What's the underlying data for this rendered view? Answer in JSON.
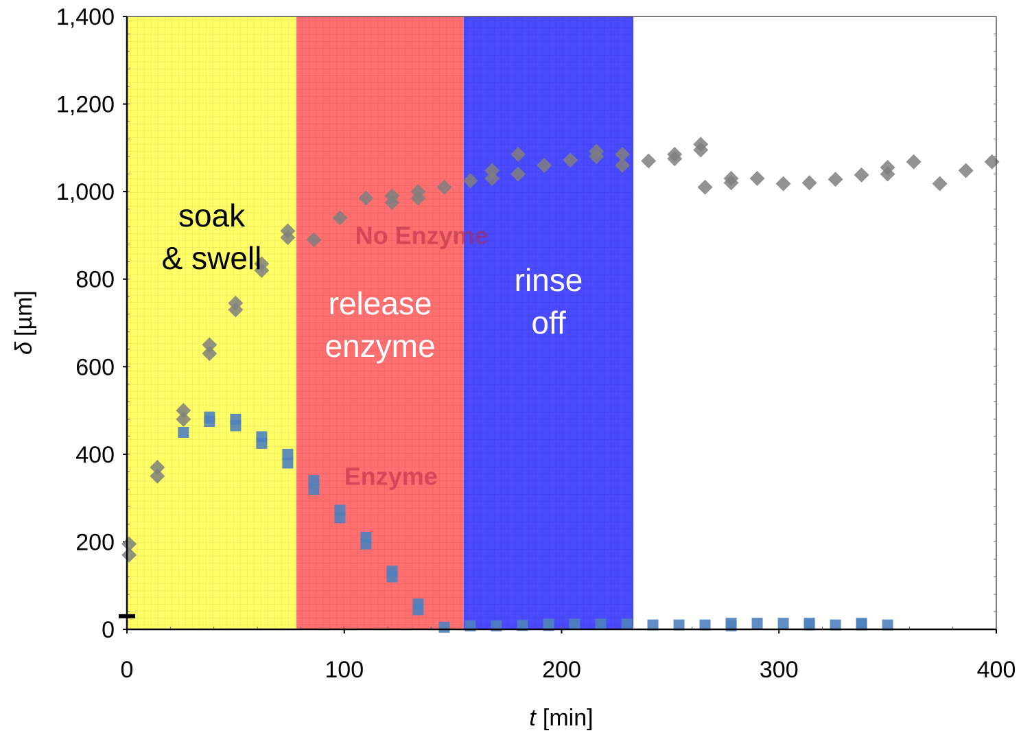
{
  "chart_data": {
    "type": "scatter",
    "title": "",
    "xlabel_symbol": "t",
    "xlabel_unit": "[min]",
    "ylabel_symbol": "δ",
    "ylabel_unit": "[µm]",
    "xlim": [
      0,
      400
    ],
    "ylim": [
      0,
      1400
    ],
    "x_ticks": [
      0,
      100,
      200,
      300,
      400
    ],
    "x_tick_labels": [
      "0",
      "100",
      "200",
      "300",
      "400"
    ],
    "y_ticks": [
      0,
      200,
      400,
      600,
      800,
      1000,
      1200,
      1400
    ],
    "y_tick_labels": [
      "0",
      "200",
      "400",
      "600",
      "800",
      "1,000",
      "1,200",
      "1,400"
    ],
    "grid": true,
    "regions": [
      {
        "label_lines": [
          "soak",
          "& swell"
        ],
        "x_start": 0,
        "x_end": 78,
        "color": "#ffff66",
        "text_color": "#000000"
      },
      {
        "label_lines": [
          "release",
          "enzyme"
        ],
        "x_start": 78,
        "x_end": 155,
        "color": "#ff6f6f",
        "text_color": "#ffffff"
      },
      {
        "label_lines": [
          "rinse",
          "off"
        ],
        "x_start": 155,
        "x_end": 233,
        "color": "#4a4aff",
        "text_color": "#ffffff"
      }
    ],
    "series": [
      {
        "name": "No Enzyme",
        "marker": "diamond",
        "color": "#7f7f7f",
        "label_at": [
          105,
          880
        ],
        "points": [
          [
            1,
            170
          ],
          [
            1,
            195
          ],
          [
            14,
            350
          ],
          [
            14,
            370
          ],
          [
            26,
            480
          ],
          [
            26,
            500
          ],
          [
            38,
            630
          ],
          [
            38,
            650
          ],
          [
            50,
            730
          ],
          [
            50,
            745
          ],
          [
            62,
            820
          ],
          [
            62,
            835
          ],
          [
            74,
            895
          ],
          [
            74,
            910
          ],
          [
            86,
            890
          ],
          [
            98,
            940
          ],
          [
            110,
            985
          ],
          [
            122,
            975
          ],
          [
            122,
            990
          ],
          [
            134,
            985
          ],
          [
            134,
            1000
          ],
          [
            146,
            1010
          ],
          [
            158,
            1025
          ],
          [
            168,
            1030
          ],
          [
            168,
            1048
          ],
          [
            180,
            1040
          ],
          [
            180,
            1085
          ],
          [
            192,
            1060
          ],
          [
            204,
            1072
          ],
          [
            216,
            1080
          ],
          [
            216,
            1092
          ],
          [
            228,
            1060
          ],
          [
            228,
            1085
          ],
          [
            240,
            1070
          ],
          [
            252,
            1075
          ],
          [
            252,
            1085
          ],
          [
            264,
            1095
          ],
          [
            264,
            1108
          ],
          [
            266,
            1010
          ],
          [
            278,
            1020
          ],
          [
            278,
            1030
          ],
          [
            290,
            1030
          ],
          [
            302,
            1018
          ],
          [
            314,
            1020
          ],
          [
            326,
            1028
          ],
          [
            338,
            1038
          ],
          [
            350,
            1040
          ],
          [
            350,
            1055
          ],
          [
            362,
            1068
          ],
          [
            374,
            1018
          ],
          [
            386,
            1048
          ],
          [
            398,
            1068
          ]
        ]
      },
      {
        "name": "Enzyme",
        "marker": "square",
        "color": "#4f81bd",
        "label_at": [
          100,
          330
        ],
        "points": [
          [
            26,
            450
          ],
          [
            38,
            475
          ],
          [
            38,
            485
          ],
          [
            50,
            465
          ],
          [
            50,
            480
          ],
          [
            62,
            425
          ],
          [
            62,
            440
          ],
          [
            74,
            380
          ],
          [
            74,
            400
          ],
          [
            86,
            320
          ],
          [
            86,
            340
          ],
          [
            98,
            255
          ],
          [
            98,
            272
          ],
          [
            110,
            195
          ],
          [
            110,
            210
          ],
          [
            122,
            120
          ],
          [
            122,
            133
          ],
          [
            134,
            45
          ],
          [
            134,
            58
          ],
          [
            146,
            5
          ],
          [
            158,
            8
          ],
          [
            170,
            8
          ],
          [
            182,
            9
          ],
          [
            194,
            9
          ],
          [
            194,
            12
          ],
          [
            206,
            12
          ],
          [
            218,
            12
          ],
          [
            230,
            12
          ],
          [
            242,
            10
          ],
          [
            254,
            10
          ],
          [
            266,
            10
          ],
          [
            278,
            8
          ],
          [
            278,
            14
          ],
          [
            290,
            14
          ],
          [
            302,
            14
          ],
          [
            314,
            14
          ],
          [
            314,
            10
          ],
          [
            326,
            10
          ],
          [
            338,
            10
          ],
          [
            338,
            14
          ],
          [
            350,
            10
          ]
        ]
      },
      {
        "name": "",
        "marker": "dash",
        "color": "#000000",
        "points": [
          [
            0,
            30
          ]
        ]
      }
    ]
  }
}
